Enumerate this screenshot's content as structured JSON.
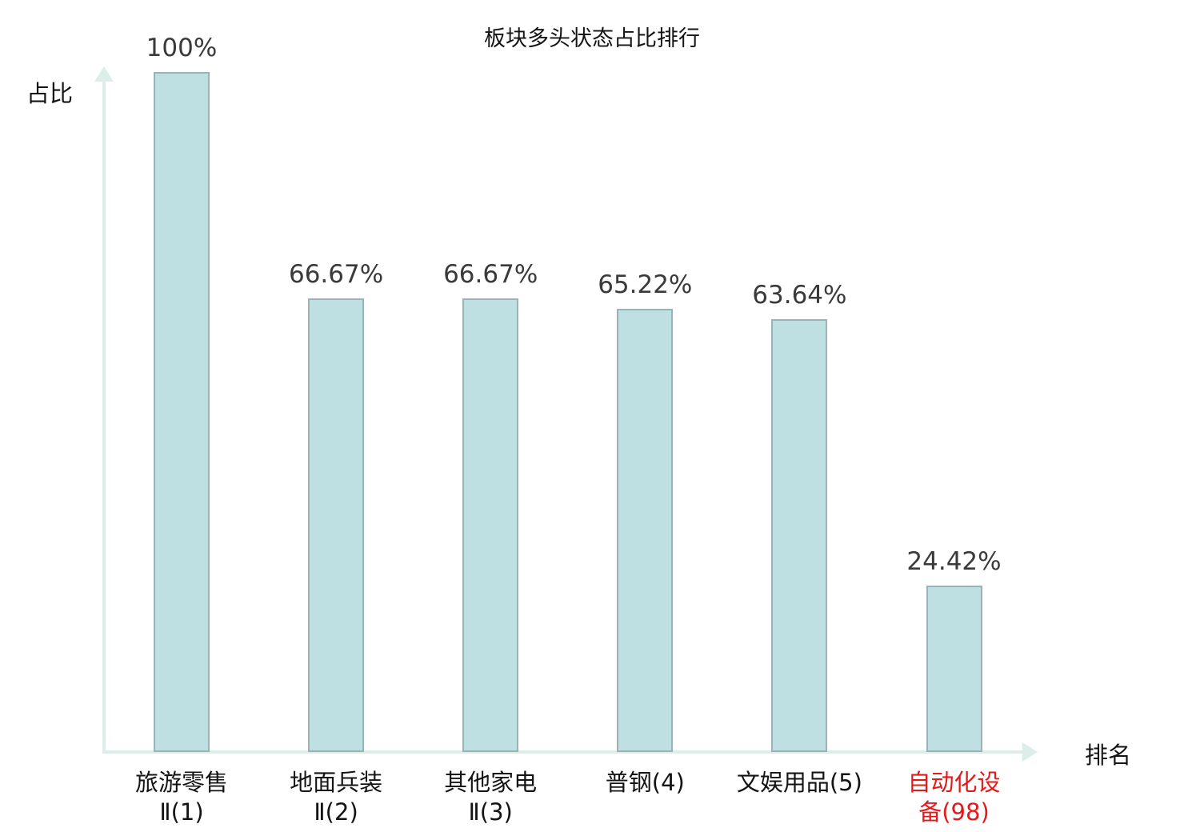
{
  "chart_data": {
    "type": "bar",
    "title": "板块多头状态占比排行",
    "ylabel": "占比",
    "xlabel": "排名",
    "ylim": [
      0,
      100
    ],
    "grid": false,
    "legend": "none",
    "bar_color": "#bfe0e3",
    "bar_border_color": "#9cb3b6",
    "axis_color": "#dceee9",
    "highlight_color": "#e11b1b",
    "categories": [
      "旅游零售Ⅱ(1)",
      "地面兵装Ⅱ(2)",
      "其他家电Ⅱ(3)",
      "普钢(4)",
      "文娱用品(5)",
      "自动化设备(98)"
    ],
    "values": [
      100,
      66.67,
      66.67,
      65.22,
      63.64,
      24.42
    ],
    "bars": [
      {
        "name": "旅游零售Ⅱ",
        "rank": 1,
        "value": 100,
        "value_label": "100%",
        "label_lines": [
          "旅游零售",
          "Ⅱ(1)"
        ],
        "highlight": false
      },
      {
        "name": "地面兵装Ⅱ",
        "rank": 2,
        "value": 66.67,
        "value_label": "66.67%",
        "label_lines": [
          "地面兵装",
          "Ⅱ(2)"
        ],
        "highlight": false
      },
      {
        "name": "其他家电Ⅱ",
        "rank": 3,
        "value": 66.67,
        "value_label": "66.67%",
        "label_lines": [
          "其他家电",
          "Ⅱ(3)"
        ],
        "highlight": false
      },
      {
        "name": "普钢",
        "rank": 4,
        "value": 65.22,
        "value_label": "65.22%",
        "label_lines": [
          "普钢(4)"
        ],
        "highlight": false
      },
      {
        "name": "文娱用品",
        "rank": 5,
        "value": 63.64,
        "value_label": "63.64%",
        "label_lines": [
          "文娱用品(5)"
        ],
        "highlight": false
      },
      {
        "name": "自动化设备",
        "rank": 98,
        "value": 24.42,
        "value_label": "24.42%",
        "label_lines": [
          "自动化设",
          "备(98)"
        ],
        "highlight": true
      }
    ]
  }
}
